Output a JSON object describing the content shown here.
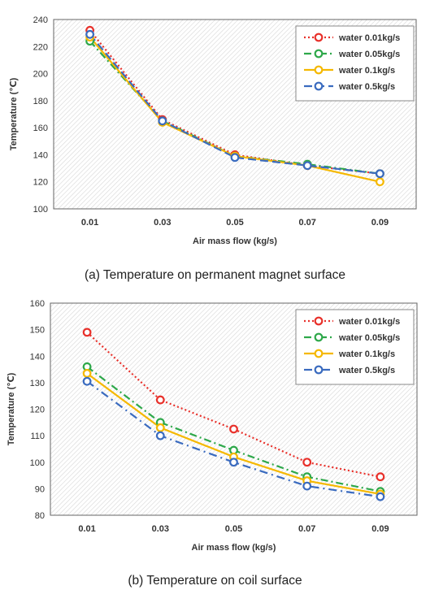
{
  "chart_data": [
    {
      "type": "line",
      "caption": "(a) Temperature on permanent magnet surface",
      "xlabel": "Air mass flow (kg/s)",
      "ylabel": "Temperature (℃)",
      "categories": [
        "0.01",
        "0.03",
        "0.05",
        "0.07",
        "0.09"
      ],
      "ylim": [
        100,
        240
      ],
      "yticks": [
        100,
        120,
        140,
        160,
        180,
        200,
        220,
        240
      ],
      "legend_position": "top-right",
      "grid": false,
      "series": [
        {
          "name": "water 0.01kg/s",
          "values": [
            232,
            166,
            140,
            132,
            126
          ],
          "color": "#e8302a",
          "dash": "2,3"
        },
        {
          "name": "water 0.05kg/s",
          "values": [
            224,
            165,
            139,
            133,
            126
          ],
          "color": "#2ea84a",
          "dash": "9,4,2,4"
        },
        {
          "name": "water 0.1kg/s",
          "values": [
            227,
            164,
            139,
            132,
            120
          ],
          "color": "#f5b800",
          "dash": ""
        },
        {
          "name": "water 0.5kg/s",
          "values": [
            229,
            165,
            138,
            132,
            126
          ],
          "color": "#3a6bbf",
          "dash": "10,5"
        }
      ]
    },
    {
      "type": "line",
      "caption": "(b) Temperature on coil surface",
      "xlabel": "Air mass flow (kg/s)",
      "ylabel": "Temperature (℃)",
      "categories": [
        "0.01",
        "0.03",
        "0.05",
        "0.07",
        "0.09"
      ],
      "ylim": [
        80,
        160
      ],
      "yticks": [
        80,
        90,
        100,
        110,
        120,
        130,
        140,
        150,
        160
      ],
      "legend_position": "top-right",
      "grid": false,
      "series": [
        {
          "name": "water 0.01kg/s",
          "values": [
            149,
            123.5,
            112.5,
            100,
            94.5
          ],
          "color": "#e8302a",
          "dash": "2,3"
        },
        {
          "name": "water 0.05kg/s",
          "values": [
            136,
            115,
            104.5,
            94.5,
            89
          ],
          "color": "#2ea84a",
          "dash": "9,4,2,4"
        },
        {
          "name": "water 0.1kg/s",
          "values": [
            133.5,
            113,
            102,
            93,
            88
          ],
          "color": "#f5b800",
          "dash": ""
        },
        {
          "name": "water 0.5kg/s",
          "values": [
            130.5,
            110,
            100,
            91,
            87
          ],
          "color": "#3a6bbf",
          "dash": "10,5,2,5"
        }
      ]
    }
  ]
}
